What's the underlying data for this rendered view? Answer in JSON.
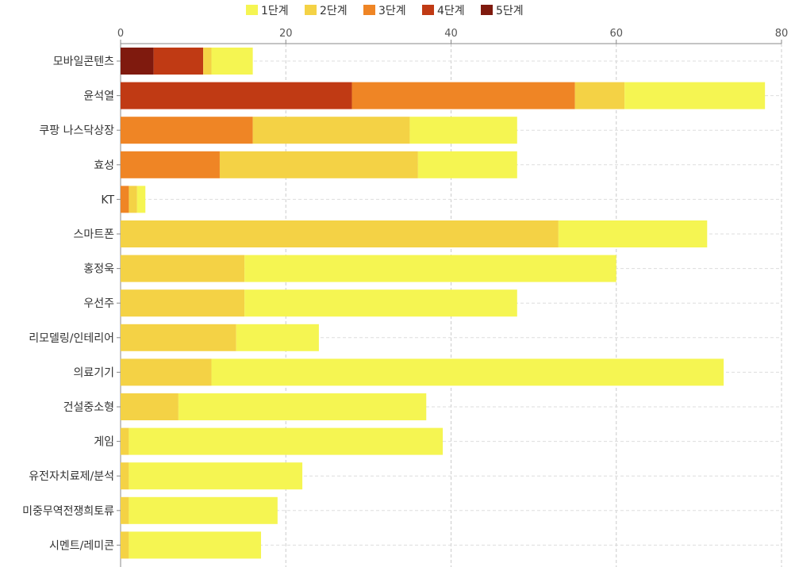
{
  "chart_data": {
    "type": "bar",
    "orientation": "horizontal",
    "stacked": true,
    "title": "",
    "xlabel": "",
    "ylabel": "",
    "xlim": [
      0,
      80
    ],
    "xticks": [
      "0",
      "20",
      "40",
      "60",
      "80"
    ],
    "x_axis_position": "top",
    "grid": true,
    "legend_position": "top",
    "categories": [
      "모바일콘텐츠",
      "윤석열",
      "쿠팡 나스닥상장",
      "효성",
      "KT",
      "스마트폰",
      "홍정욱",
      "우선주",
      "리모델링/인테리어",
      "의료기기",
      "건설중소형",
      "게임",
      "유전자치료제/분석",
      "미중무역전쟁희토류",
      "시멘트/레미콘"
    ],
    "series": [
      {
        "name": "5단계",
        "color": "#7f1a0e",
        "values": [
          4,
          0,
          0,
          0,
          0,
          0,
          0,
          0,
          0,
          0,
          0,
          0,
          0,
          0,
          0
        ]
      },
      {
        "name": "4단계",
        "color": "#c03a14",
        "values": [
          6,
          28,
          0,
          0,
          0,
          0,
          0,
          0,
          0,
          0,
          0,
          0,
          0,
          0,
          0
        ]
      },
      {
        "name": "3단계",
        "color": "#ef8525",
        "values": [
          0,
          27,
          16,
          12,
          1,
          0,
          0,
          0,
          0,
          0,
          0,
          0,
          0,
          0,
          0
        ]
      },
      {
        "name": "2단계",
        "color": "#f4d245",
        "values": [
          1,
          6,
          19,
          24,
          1,
          53,
          15,
          15,
          14,
          11,
          7,
          1,
          1,
          1,
          1
        ]
      },
      {
        "name": "1단계",
        "color": "#f5f552",
        "values": [
          5,
          17,
          13,
          12,
          1,
          18,
          45,
          33,
          10,
          62,
          30,
          38,
          21,
          18,
          16
        ]
      }
    ],
    "legend_order": [
      "1단계",
      "2단계",
      "3단계",
      "4단계",
      "5단계"
    ]
  }
}
